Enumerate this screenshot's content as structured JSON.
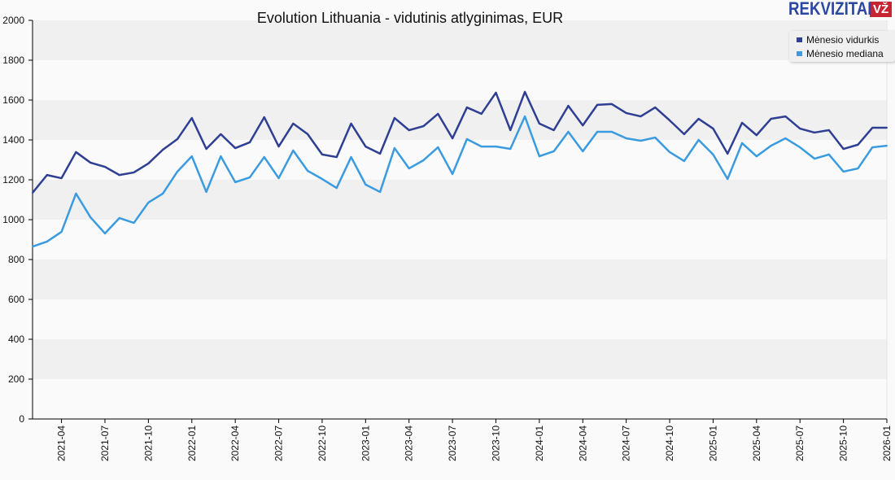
{
  "chart_data": {
    "type": "line",
    "title": "Evolution Lithuania - vidutinis atlyginimas, EUR",
    "xlabel": "",
    "ylabel": "",
    "ylim": [
      0,
      2000
    ],
    "yticks": [
      0,
      200,
      400,
      600,
      800,
      1000,
      1200,
      1400,
      1600,
      1800,
      2000
    ],
    "grid": true,
    "legend_position": "top-right",
    "x_start": "2021-02",
    "xtick_labels": [
      "2021-04",
      "2021-07",
      "2021-10",
      "2022-01",
      "2022-04",
      "2022-07",
      "2022-10",
      "2023-01",
      "2023-04",
      "2023-07",
      "2023-10",
      "2024-01",
      "2024-04",
      "2024-07",
      "2024-10",
      "2025-01",
      "2025-04",
      "2025-07",
      "2025-10",
      "2026-01"
    ],
    "x": [
      "2021-02",
      "2021-03",
      "2021-04",
      "2021-05",
      "2021-06",
      "2021-07",
      "2021-08",
      "2021-09",
      "2021-10",
      "2021-11",
      "2021-12",
      "2022-01",
      "2022-02",
      "2022-03",
      "2022-04",
      "2022-05",
      "2022-06",
      "2022-07",
      "2022-08",
      "2022-09",
      "2022-10",
      "2022-11",
      "2022-12",
      "2023-01",
      "2023-02",
      "2023-03",
      "2023-04",
      "2023-05",
      "2023-06",
      "2023-07",
      "2023-08",
      "2023-09",
      "2023-10",
      "2023-11",
      "2023-12",
      "2024-01",
      "2024-02",
      "2024-03",
      "2024-04",
      "2024-05",
      "2024-06",
      "2024-07",
      "2024-08",
      "2024-09",
      "2024-10",
      "2024-11",
      "2024-12",
      "2025-01",
      "2025-02",
      "2025-03",
      "2025-04",
      "2025-05",
      "2025-06",
      "2025-07",
      "2025-08",
      "2025-09",
      "2025-10",
      "2025-11",
      "2025-12",
      "2026-01"
    ],
    "series": [
      {
        "name": "Mėnesio vidurkis",
        "color": "#2e3f94",
        "values": [
          1135,
          1224,
          1208,
          1339,
          1286,
          1265,
          1224,
          1237,
          1282,
          1351,
          1404,
          1510,
          1355,
          1429,
          1359,
          1388,
          1514,
          1367,
          1482,
          1429,
          1327,
          1314,
          1482,
          1367,
          1331,
          1510,
          1449,
          1469,
          1531,
          1408,
          1563,
          1531,
          1637,
          1449,
          1641,
          1482,
          1449,
          1571,
          1473,
          1576,
          1580,
          1535,
          1518,
          1563,
          1498,
          1429,
          1506,
          1457,
          1331,
          1486,
          1424,
          1506,
          1518,
          1457,
          1437,
          1449,
          1355,
          1376,
          1461,
          1461
        ]
      },
      {
        "name": "Mėnesio mediana",
        "color": "#3a9be0",
        "values": [
          865,
          890,
          939,
          1131,
          1012,
          931,
          1008,
          984,
          1086,
          1131,
          1241,
          1318,
          1139,
          1318,
          1188,
          1212,
          1314,
          1208,
          1347,
          1245,
          1204,
          1159,
          1314,
          1176,
          1139,
          1359,
          1257,
          1298,
          1363,
          1229,
          1404,
          1367,
          1367,
          1355,
          1518,
          1318,
          1343,
          1441,
          1343,
          1441,
          1441,
          1408,
          1396,
          1412,
          1339,
          1294,
          1400,
          1327,
          1204,
          1384,
          1318,
          1371,
          1408,
          1363,
          1306,
          1327,
          1241,
          1257,
          1363,
          1371
        ]
      }
    ]
  },
  "logo": {
    "text": "REKVIZITAI",
    "badge": "VŽ"
  }
}
